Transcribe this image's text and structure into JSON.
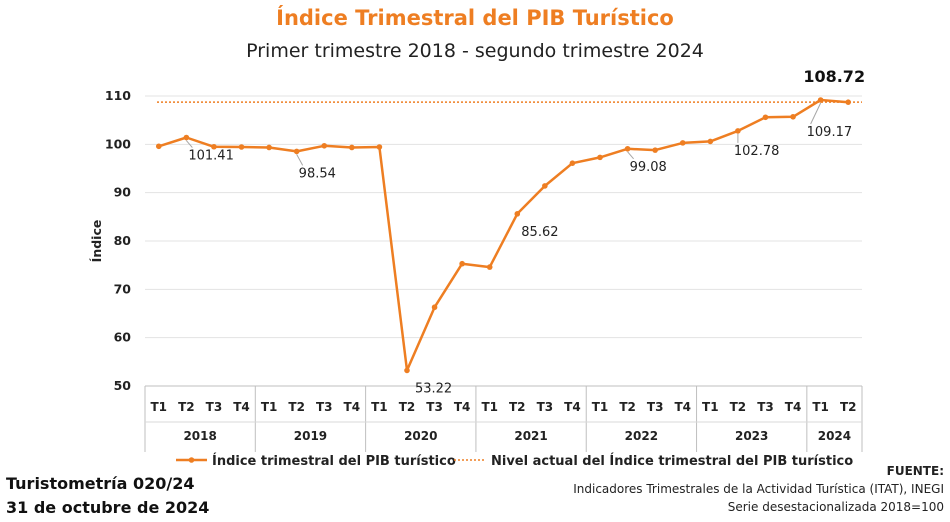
{
  "chart_data": {
    "type": "line",
    "title": "Índice Trimestral del PIB Turístico",
    "subtitle": "Primer trimestre 2018 - segundo trimestre 2024",
    "ylabel": "Índice",
    "ylim": [
      50,
      110
    ],
    "yticks": [
      "50",
      "60",
      "70",
      "80",
      "90",
      "100",
      "110"
    ],
    "grid": "horizontal",
    "legend_position": "bottom",
    "years": [
      {
        "label": "2018",
        "quarters": [
          "T1",
          "T2",
          "T3",
          "T4"
        ]
      },
      {
        "label": "2019",
        "quarters": [
          "T1",
          "T2",
          "T3",
          "T4"
        ]
      },
      {
        "label": "2020",
        "quarters": [
          "T1",
          "T2",
          "T3",
          "T4"
        ]
      },
      {
        "label": "2021",
        "quarters": [
          "T1",
          "T2",
          "T3",
          "T4"
        ]
      },
      {
        "label": "2022",
        "quarters": [
          "T1",
          "T2",
          "T3",
          "T4"
        ]
      },
      {
        "label": "2023",
        "quarters": [
          "T1",
          "T2",
          "T3",
          "T4"
        ]
      },
      {
        "label": "2024",
        "quarters": [
          "T1",
          "T2"
        ]
      }
    ],
    "series": [
      {
        "name": "Índice trimestral del PIB turístico",
        "color": "#ee7e22",
        "values": [
          99.6,
          101.41,
          99.5,
          99.45,
          99.35,
          98.54,
          99.7,
          99.35,
          99.45,
          53.22,
          66.3,
          75.3,
          74.6,
          85.62,
          91.4,
          96.1,
          97.3,
          99.08,
          98.8,
          100.3,
          100.6,
          102.78,
          105.6,
          105.7,
          109.17,
          108.72
        ]
      },
      {
        "name": "Nivel actual del Índice trimestral del PIB turístico",
        "color": "#ee7e22",
        "style": "dotted",
        "level": 108.72
      }
    ],
    "annotations": [
      {
        "index": 1,
        "text": "101.41"
      },
      {
        "index": 5,
        "text": "98.54"
      },
      {
        "index": 9,
        "text": "53.22"
      },
      {
        "index": 13,
        "text": "85.62"
      },
      {
        "index": 17,
        "text": "99.08"
      },
      {
        "index": 21,
        "text": "102.78"
      },
      {
        "index": 24,
        "text": "109.17"
      },
      {
        "index": 25,
        "text": "108.72"
      }
    ]
  },
  "footer": {
    "report_id": "Turistometría 020/24",
    "date": "31 de octubre de 2024",
    "source_heading": "FUENTE:",
    "source_line1": "Indicadores Trimestrales de la Actividad Turística (ITAT), INEGI",
    "source_line2": "Serie desestacionalizada 2018=100"
  }
}
